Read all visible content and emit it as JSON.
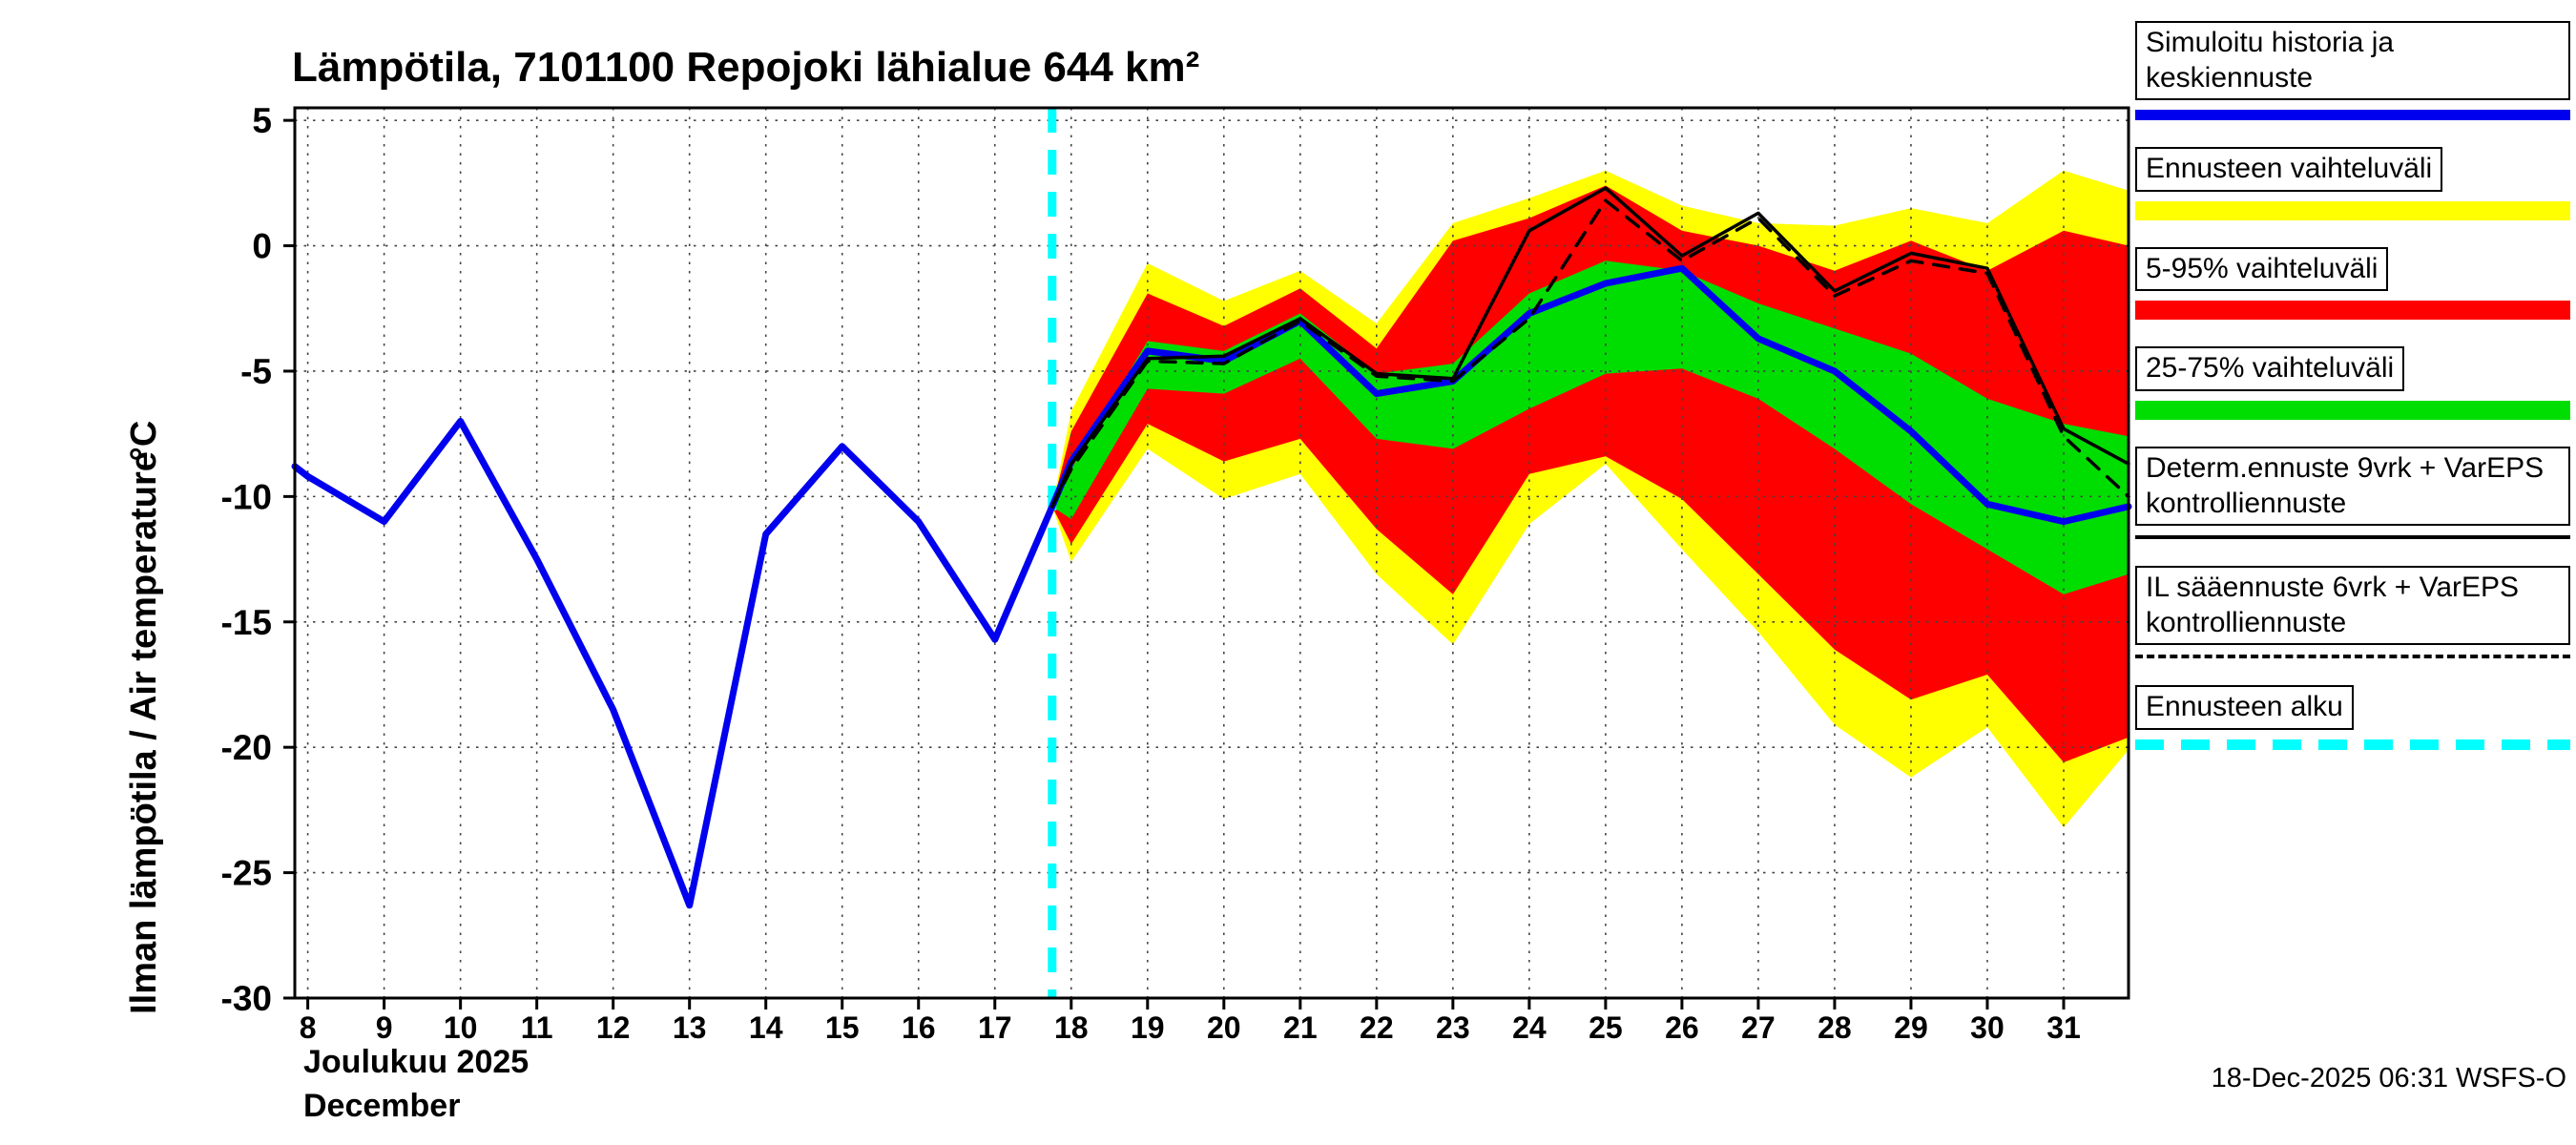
{
  "title": "Lämpötila, 7101100 Repojoki lähialue 644 km²",
  "y_axis": {
    "label": "Ilman lämpötila / Air temperature",
    "unit": "°C"
  },
  "x_axis": {
    "month_fi": "Joulukuu 2025",
    "month_en": "December"
  },
  "footer": {
    "timestamp": "18-Dec-2025 06:31 WSFS-O"
  },
  "legend": {
    "items": [
      {
        "label": "Simuloitu historia ja keskiennuste",
        "swatch": "blue-line"
      },
      {
        "label": "Ennusteen vaihteluväli",
        "swatch": "yellow-band"
      },
      {
        "label": "5-95% vaihteluväli",
        "swatch": "red-band"
      },
      {
        "label": "25-75% vaihteluväli",
        "swatch": "green-band"
      },
      {
        "label": "Determ.ennuste 9vrk + VarEPS kontrolliennuste",
        "swatch": "black-line"
      },
      {
        "label": "IL sääennuste 6vrk + VarEPS kontrolliennuste",
        "swatch": "black-dashed-line"
      },
      {
        "label": "Ennusteen alku",
        "swatch": "cyan-dashed-line"
      }
    ]
  },
  "chart_data": {
    "type": "line",
    "title": "Lämpötila, 7101100 Repojoki lähialue 644 km²",
    "xlabel": "Joulukuu 2025 / December",
    "ylabel": "Ilman lämpötila / Air temperature °C",
    "xlim": [
      7.83,
      31.85
    ],
    "ylim": [
      -30,
      5.5
    ],
    "x_ticks": [
      8,
      9,
      10,
      11,
      12,
      13,
      14,
      15,
      16,
      17,
      18,
      19,
      20,
      21,
      22,
      23,
      24,
      25,
      26,
      27,
      28,
      29,
      30,
      31
    ],
    "y_ticks": [
      5,
      0,
      -5,
      -10,
      -15,
      -20,
      -25,
      -30
    ],
    "grid": true,
    "legend_position": "right",
    "forecast_start_x": 17.75,
    "forecast_start_color": "#00ffff",
    "bands": [
      {
        "name": "forecast-range-yellow",
        "color": "#ffff00",
        "x": [
          17.75,
          18,
          19,
          20,
          21,
          22,
          23,
          24,
          25,
          26,
          27,
          28,
          29,
          30,
          31,
          31.85
        ],
        "hi": [
          -10.4,
          -6.6,
          -0.7,
          -2.2,
          -1.0,
          -3.1,
          0.9,
          1.9,
          3.0,
          1.6,
          0.9,
          0.8,
          1.5,
          0.9,
          3.0,
          2.2
        ],
        "lo": [
          -10.4,
          -12.6,
          -8.1,
          -10.1,
          -9.1,
          -13.1,
          -15.9,
          -11.1,
          -8.7,
          -12.1,
          -15.4,
          -19.1,
          -21.2,
          -19.2,
          -23.2,
          -20.1
        ]
      },
      {
        "name": "p5-95-red",
        "color": "#ff0000",
        "x": [
          17.75,
          18,
          19,
          20,
          21,
          22,
          23,
          24,
          25,
          26,
          27,
          28,
          29,
          30,
          31,
          31.85
        ],
        "hi": [
          -10.4,
          -7.4,
          -1.9,
          -3.2,
          -1.7,
          -4.1,
          0.2,
          1.1,
          2.4,
          0.6,
          0.0,
          -1.0,
          0.2,
          -1.0,
          0.6,
          0.0
        ],
        "lo": [
          -10.4,
          -11.9,
          -7.1,
          -8.6,
          -7.7,
          -11.3,
          -13.9,
          -9.1,
          -8.4,
          -10.1,
          -13.1,
          -16.1,
          -18.1,
          -17.1,
          -20.6,
          -19.6
        ]
      },
      {
        "name": "p25-75-green",
        "color": "#00dd00",
        "x": [
          17.75,
          18,
          19,
          20,
          21,
          22,
          23,
          24,
          25,
          26,
          27,
          28,
          29,
          30,
          31,
          31.85
        ],
        "hi": [
          -10.4,
          -8.9,
          -3.8,
          -4.2,
          -2.7,
          -5.1,
          -4.7,
          -1.9,
          -0.6,
          -1.0,
          -2.3,
          -3.3,
          -4.3,
          -6.1,
          -7.1,
          -7.6
        ],
        "lo": [
          -10.4,
          -10.9,
          -5.7,
          -5.9,
          -4.5,
          -7.7,
          -8.1,
          -6.5,
          -5.1,
          -4.9,
          -6.1,
          -8.1,
          -10.3,
          -12.1,
          -13.9,
          -13.1
        ]
      }
    ],
    "series": [
      {
        "name": "simulated-history-and-mean-forecast",
        "color": "#0000ee",
        "width": 7,
        "dash": "",
        "x": [
          7.83,
          8,
          9,
          10,
          11,
          12,
          13,
          14,
          15,
          16,
          17,
          17.75,
          18,
          19,
          20,
          21,
          22,
          23,
          24,
          25,
          26,
          27,
          28,
          29,
          30,
          31,
          31.85
        ],
        "y": [
          -8.8,
          -9.2,
          -11.0,
          -7.0,
          -12.5,
          -18.5,
          -26.3,
          -11.5,
          -8.0,
          -11.0,
          -15.7,
          -10.4,
          -8.6,
          -4.2,
          -4.6,
          -3.0,
          -5.9,
          -5.4,
          -2.7,
          -1.5,
          -0.9,
          -3.7,
          -5.0,
          -7.4,
          -10.3,
          -11.0,
          -10.4
        ]
      },
      {
        "name": "il-weather-forecast-vareps-control-dashed",
        "color": "#000000",
        "width": 3.5,
        "dash": "16 12",
        "x": [
          17.75,
          18,
          19,
          20,
          21,
          22,
          23,
          24,
          25,
          26,
          27,
          28,
          29,
          30,
          31,
          31.85
        ],
        "y": [
          -10.4,
          -8.9,
          -4.6,
          -4.7,
          -3.0,
          -5.2,
          -5.4,
          -2.9,
          1.8,
          -0.6,
          1.1,
          -2.0,
          -0.6,
          -1.1,
          -7.6,
          -10.0
        ]
      },
      {
        "name": "deterministic-forecast-vareps-control",
        "color": "#000000",
        "width": 3.5,
        "dash": "",
        "x": [
          17.75,
          18,
          19,
          20,
          21,
          22,
          23,
          24,
          25,
          26,
          27,
          28,
          29,
          30,
          31,
          31.85
        ],
        "y": [
          -10.4,
          -8.7,
          -4.5,
          -4.4,
          -2.9,
          -5.1,
          -5.3,
          0.6,
          2.3,
          -0.4,
          1.3,
          -1.8,
          -0.3,
          -0.9,
          -7.3,
          -8.7
        ]
      }
    ]
  }
}
